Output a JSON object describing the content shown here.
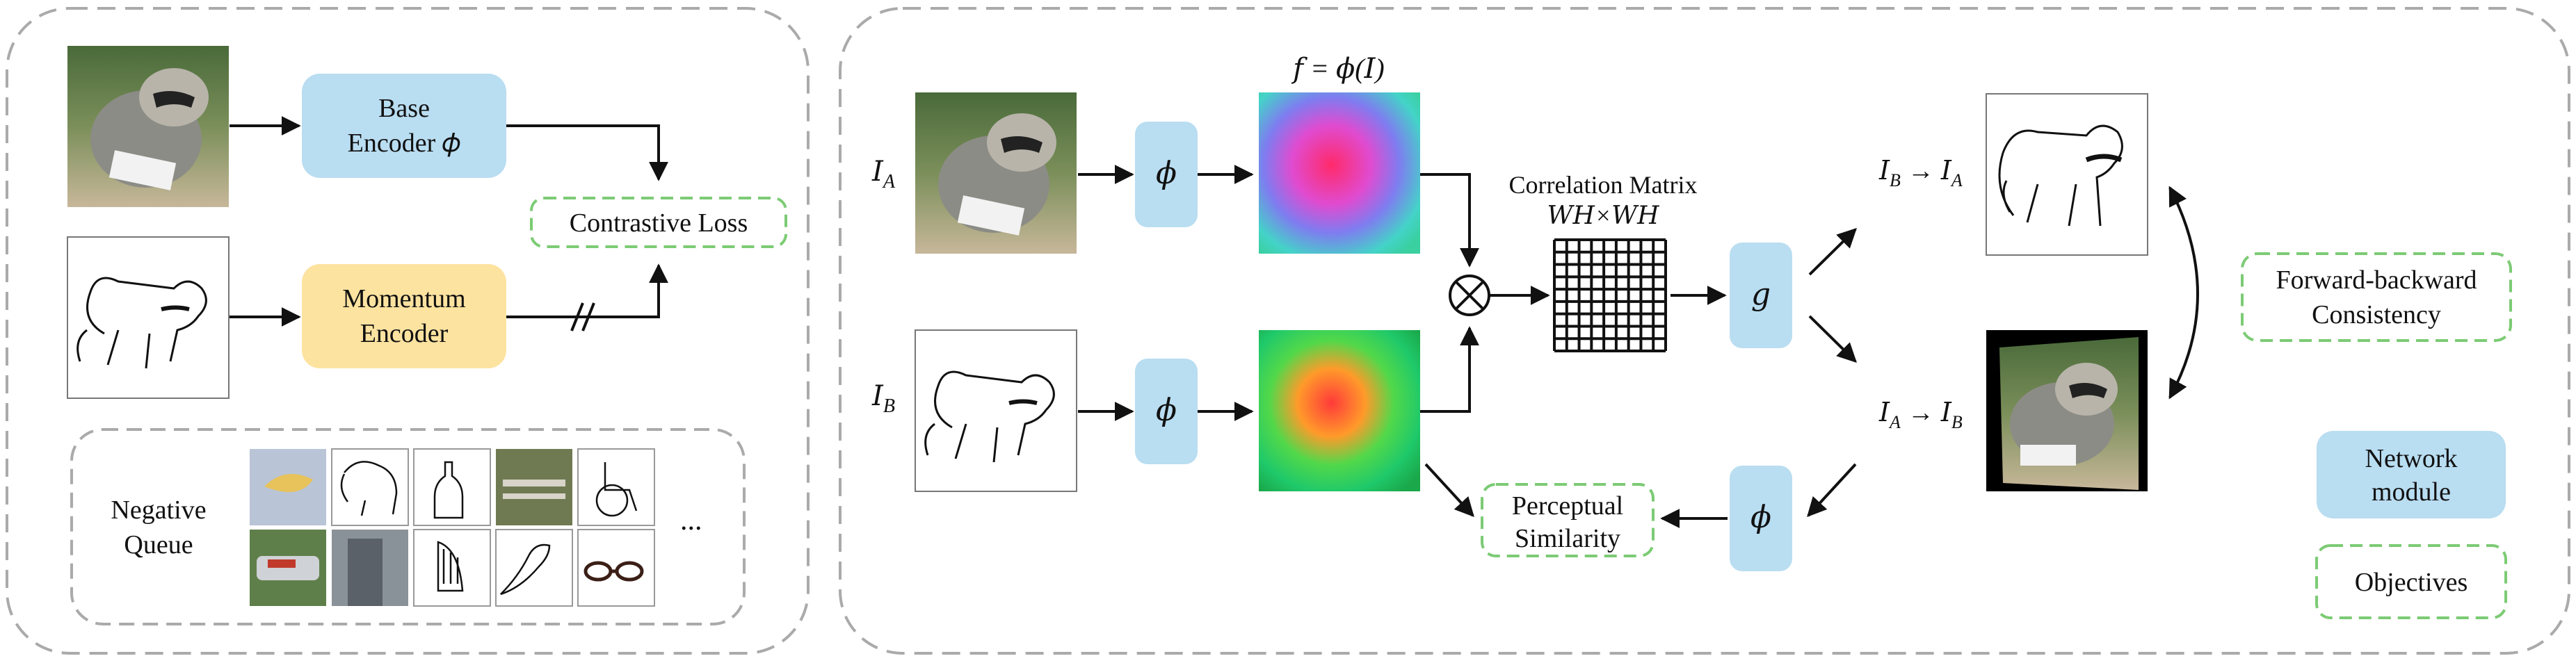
{
  "colors": {
    "network_module": "#B9DDF1",
    "momentum_encoder": "#FDE3A0",
    "objective_border": "#7CCB74",
    "panel_border": "#AAAAAA",
    "arrow": "#111111",
    "correlation_grid": "#111111"
  },
  "left_panel": {
    "base_encoder": {
      "line1": "Base",
      "line2": "Encoder 𝜙"
    },
    "momentum_encoder": {
      "line1": "Momentum",
      "line2": "Encoder"
    },
    "contrastive_loss": "Contrastive Loss",
    "negative_queue": {
      "line1": "Negative",
      "line2": "Queue",
      "ellipsis": "..."
    },
    "photo_icon": "raccoon-photo",
    "sketch_icon": "raccoon-sketch",
    "queue_thumbnails": [
      "bananas-photo",
      "bear-sketch",
      "bottle-sketch",
      "bench-photo",
      "wheelchair-sketch",
      "race-car-photo",
      "skyscraper-photo",
      "harp-sketch",
      "parrot-sketch",
      "eyeglasses-photo"
    ]
  },
  "right_panel": {
    "input_a": "𝐼",
    "input_a_sub": "A",
    "input_b": "𝐼",
    "input_b_sub": "B",
    "phi": "𝜙",
    "feature_label": "𝑓 = 𝜙(𝐼)",
    "correlation_title": "Correlation Matrix",
    "correlation_dims": "𝑊𝐻×𝑊𝐻",
    "otimes": "⊗",
    "g": "𝑔",
    "b_to_a": {
      "from": "𝐼",
      "from_sub": "B",
      "arrow": "→",
      "to": "𝐼",
      "to_sub": "A"
    },
    "a_to_b": {
      "from": "𝐼",
      "from_sub": "A",
      "arrow": "→",
      "to": "𝐼",
      "to_sub": "B"
    },
    "forward_backward": {
      "line1": "Forward-backward",
      "line2": "Consistency"
    },
    "perceptual": {
      "line1": "Perceptual",
      "line2": "Similarity"
    },
    "legend_network": {
      "line1": "Network",
      "line2": "module"
    },
    "legend_objectives": "Objectives"
  }
}
